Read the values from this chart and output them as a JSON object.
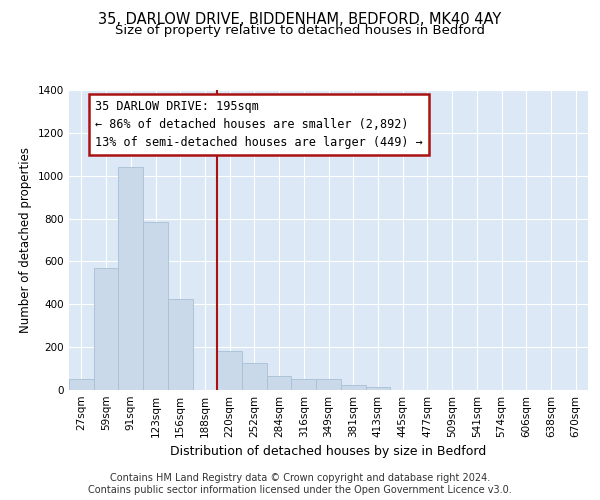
{
  "title_line1": "35, DARLOW DRIVE, BIDDENHAM, BEDFORD, MK40 4AY",
  "title_line2": "Size of property relative to detached houses in Bedford",
  "xlabel": "Distribution of detached houses by size in Bedford",
  "ylabel": "Number of detached properties",
  "categories": [
    "27sqm",
    "59sqm",
    "91sqm",
    "123sqm",
    "156sqm",
    "188sqm",
    "220sqm",
    "252sqm",
    "284sqm",
    "316sqm",
    "349sqm",
    "381sqm",
    "413sqm",
    "445sqm",
    "477sqm",
    "509sqm",
    "541sqm",
    "574sqm",
    "606sqm",
    "638sqm",
    "670sqm"
  ],
  "values": [
    50,
    570,
    1040,
    785,
    425,
    0,
    180,
    125,
    65,
    50,
    50,
    25,
    15,
    0,
    0,
    0,
    0,
    0,
    0,
    0,
    0
  ],
  "bar_color": "#c9d9ea",
  "bar_edgecolor": "#a8bfd4",
  "vline_color": "#aa1111",
  "vline_x": 5.5,
  "annotation_text": "35 DARLOW DRIVE: 195sqm\n← 86% of detached houses are smaller (2,892)\n13% of semi-detached houses are larger (449) →",
  "annotation_box_facecolor": "#ffffff",
  "annotation_box_edgecolor": "#aa1111",
  "ylim": [
    0,
    1400
  ],
  "yticks": [
    0,
    200,
    400,
    600,
    800,
    1000,
    1200,
    1400
  ],
  "background_color": "#dce8f5",
  "grid_color": "#ffffff",
  "footnote": "Contains HM Land Registry data © Crown copyright and database right 2024.\nContains public sector information licensed under the Open Government Licence v3.0.",
  "title_fontsize": 10.5,
  "subtitle_fontsize": 9.5,
  "xlabel_fontsize": 9,
  "ylabel_fontsize": 8.5,
  "tick_fontsize": 7.5,
  "annotation_fontsize": 8.5,
  "footnote_fontsize": 7
}
